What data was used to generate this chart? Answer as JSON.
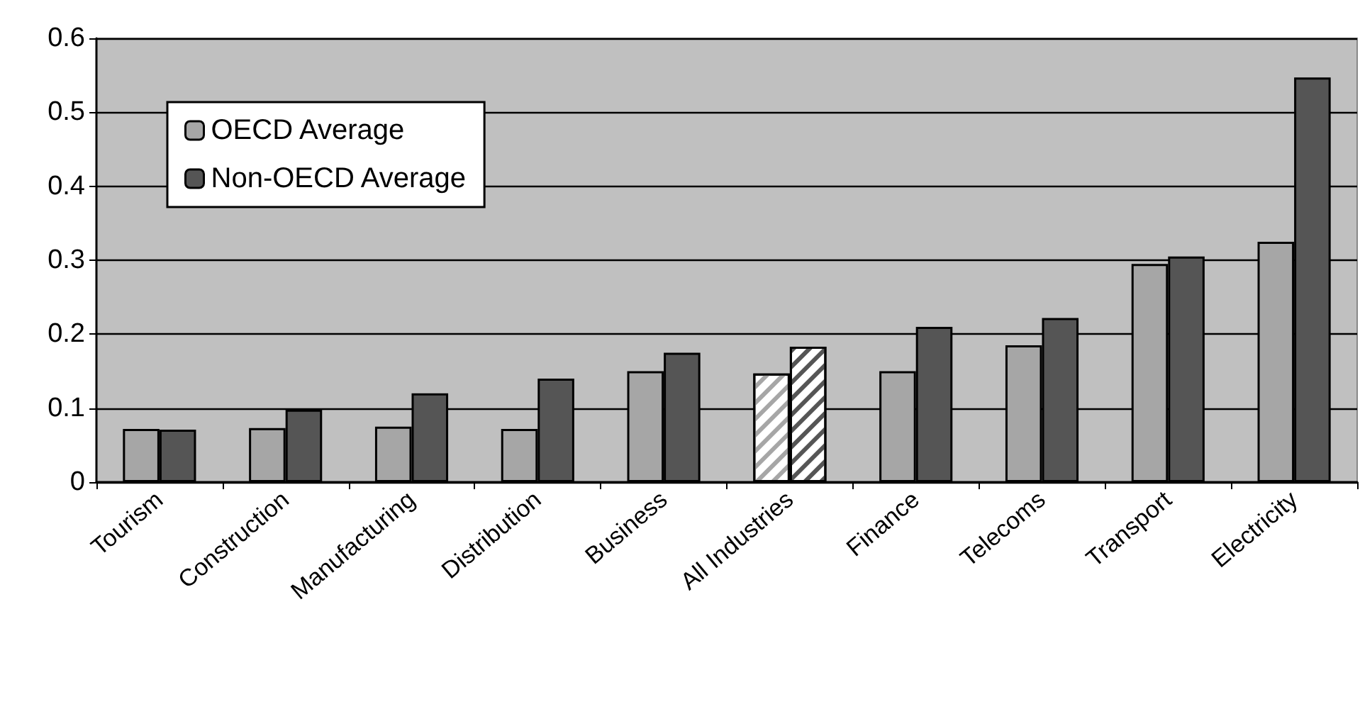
{
  "chart_data": {
    "type": "bar",
    "categories": [
      "Tourism",
      "Construction",
      "Manufacturing",
      "Distribution",
      "Business",
      "All Industries",
      "Finance",
      "Telecoms",
      "Transport",
      "Electricity"
    ],
    "series": [
      {
        "name": "OECD Average",
        "color": "#a6a6a6",
        "colors": [
          "#a6a6a6",
          "#a6a6a6",
          "#a6a6a6",
          "#a6a6a6",
          "#a6a6a6",
          "#ffffff",
          "#a6a6a6",
          "#a6a6a6",
          "#a6a6a6",
          "#a6a6a6"
        ],
        "values": [
          0.072,
          0.073,
          0.075,
          0.072,
          0.15,
          0.147,
          0.15,
          0.185,
          0.295,
          0.325
        ]
      },
      {
        "name": "Non-OECD Average",
        "color": "#555555",
        "colors": [
          "#555555",
          "#555555",
          "#555555",
          "#555555",
          "#555555",
          "#ffffff",
          "#555555",
          "#555555",
          "#555555",
          "#555555"
        ],
        "values": [
          0.071,
          0.098,
          0.12,
          0.14,
          0.175,
          0.183,
          0.21,
          0.222,
          0.305,
          0.547
        ]
      }
    ],
    "ylim": [
      0,
      0.6
    ],
    "yticks": [
      0,
      0.1,
      0.2,
      0.3,
      0.4,
      0.5,
      0.6
    ],
    "grid": "y",
    "legend": "top left"
  }
}
